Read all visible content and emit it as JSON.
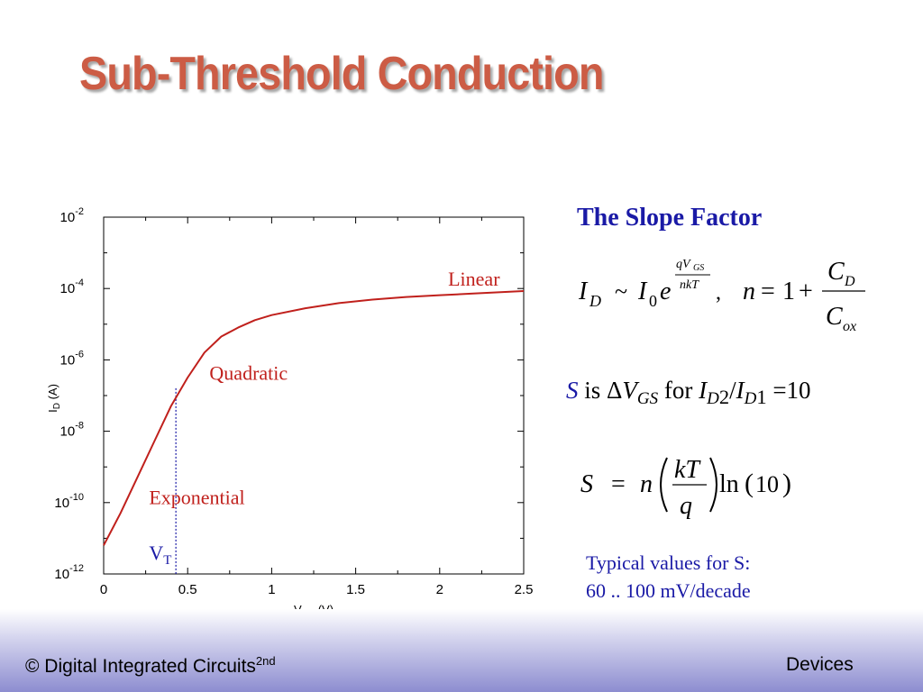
{
  "slide": {
    "title": "Sub-Threshold Conduction",
    "footer_left": "© Digital Integrated Circuits",
    "footer_left_sup": "2nd",
    "footer_right": "Devices"
  },
  "slope": {
    "title": "The Slope Factor",
    "formula_id": "I_D ~ I_0 e^(qV_GS / nkT) , n = 1 + C_D / C_ox",
    "s_definition": "S is ΔV_GS for I_D2/I_D1 =10",
    "s_formula": "S = n (kT / q) ln(10)",
    "typical_line1": "Typical values for S:",
    "typical_line2": "60 .. 100 mV/decade"
  },
  "chart_data": {
    "type": "line",
    "xlabel": "V_GS (V)",
    "ylabel": "I_D (A)",
    "y_scale": "log",
    "xlim": [
      0,
      2.5
    ],
    "ylim": [
      1e-12,
      0.01
    ],
    "xticks": [
      0,
      0.5,
      1,
      1.5,
      2,
      2.5
    ],
    "xtick_labels": [
      "0",
      "0.5",
      "1",
      "1.5",
      "2",
      "2.5"
    ],
    "yticks": [
      1e-12,
      1e-10,
      1e-08,
      1e-06,
      0.0001,
      0.01
    ],
    "ytick_base": "10",
    "ytick_exponents": [
      "-12",
      "-10",
      "-8",
      "-6",
      "-4",
      "-2"
    ],
    "grid": false,
    "series": [
      {
        "color": "#c0201c",
        "x": [
          0,
          0.1,
          0.2,
          0.3,
          0.4,
          0.5,
          0.6,
          0.7,
          0.8,
          0.9,
          1.0,
          1.2,
          1.4,
          1.6,
          1.8,
          2.0,
          2.2,
          2.5
        ],
        "y": [
          6.3e-12,
          5e-11,
          5e-10,
          5e-09,
          5e-08,
          3.2e-07,
          1.6e-06,
          4.5e-06,
          8e-06,
          1.3e-05,
          1.8e-05,
          2.8e-05,
          3.9e-05,
          4.9e-05,
          5.8e-05,
          6.5e-05,
          7.2e-05,
          8.5e-05
        ]
      }
    ],
    "annotations": [
      {
        "text": "Linear",
        "x": 2.05,
        "y": 0.00012
      },
      {
        "text": "Quadratic",
        "x": 0.63,
        "y": 2.8e-07
      },
      {
        "text": "Exponential",
        "x": 0.27,
        "y": 9e-11
      },
      {
        "text": "V",
        "sub": "T",
        "x": 0.27,
        "y": 2.5e-12
      }
    ],
    "vt_line_x": 0.43,
    "annotation_color": "#c0201c",
    "vt_color": "#1a1aa6"
  }
}
